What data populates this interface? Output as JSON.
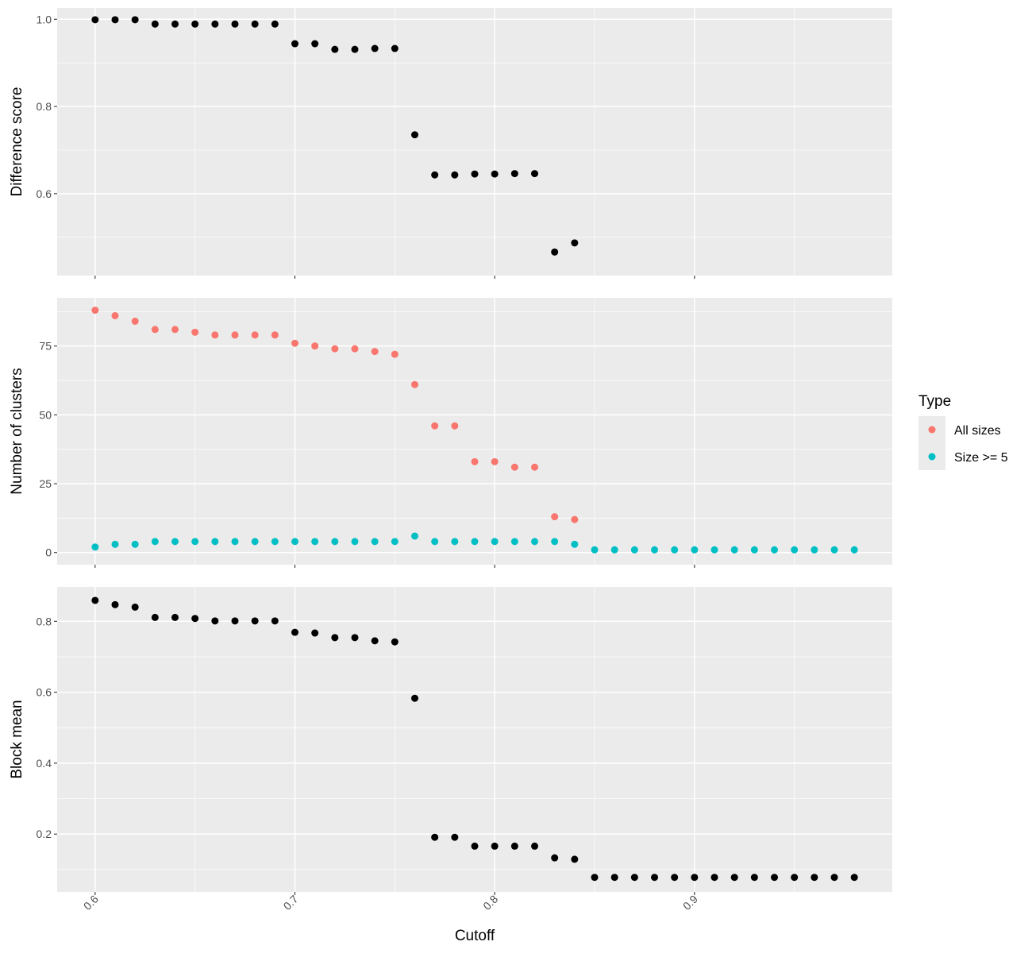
{
  "chart_data": {
    "type": "scatter",
    "xlabel": "Cutoff",
    "x_ticks": [
      "0.6",
      "0.7",
      "0.8",
      "0.9"
    ],
    "x_tick_values": [
      0.6,
      0.7,
      0.8,
      0.9
    ],
    "xlim": [
      0.581,
      0.999
    ],
    "grid": true,
    "legend": {
      "position": "right",
      "title": "Type",
      "entries": [
        {
          "label": "All sizes",
          "color": "#F8766D"
        },
        {
          "label": "Size >= 5",
          "color": "#00BFC4"
        }
      ]
    },
    "panels": [
      {
        "ylabel": "Difference score",
        "ylim": [
          0.412,
          1.026
        ],
        "y_ticks": [
          "0.6",
          "0.8",
          "1.0"
        ],
        "y_tick_values": [
          0.6,
          0.8,
          1.0
        ],
        "y_minor": [
          0.5,
          0.7,
          0.9
        ],
        "series": [
          {
            "color": "#000000",
            "x": [
              0.6,
              0.61,
              0.62,
              0.63,
              0.64,
              0.65,
              0.66,
              0.67,
              0.68,
              0.69,
              0.7,
              0.71,
              0.72,
              0.73,
              0.74,
              0.75,
              0.76,
              0.77,
              0.78,
              0.79,
              0.8,
              0.81,
              0.82,
              0.83,
              0.84
            ],
            "y": [
              0.999,
              0.999,
              0.999,
              0.989,
              0.989,
              0.989,
              0.989,
              0.989,
              0.989,
              0.989,
              0.944,
              0.944,
              0.931,
              0.931,
              0.933,
              0.933,
              0.735,
              0.643,
              0.643,
              0.645,
              0.645,
              0.646,
              0.646,
              0.466,
              0.487
            ]
          }
        ]
      },
      {
        "ylabel": "Number of clusters",
        "ylim": [
          -4.4,
          92.5
        ],
        "y_ticks": [
          "0",
          "25",
          "50",
          "75"
        ],
        "y_tick_values": [
          0,
          25,
          50,
          75
        ],
        "y_minor": [
          12.5,
          37.5,
          62.5,
          87.5
        ],
        "series": [
          {
            "name": "All sizes",
            "color": "#F8766D",
            "x": [
              0.6,
              0.61,
              0.62,
              0.63,
              0.64,
              0.65,
              0.66,
              0.67,
              0.68,
              0.69,
              0.7,
              0.71,
              0.72,
              0.73,
              0.74,
              0.75,
              0.76,
              0.77,
              0.78,
              0.79,
              0.8,
              0.81,
              0.82,
              0.83,
              0.84
            ],
            "y": [
              88,
              86,
              84,
              81,
              81,
              80,
              79,
              79,
              79,
              79,
              76,
              75,
              74,
              74,
              73,
              72,
              61,
              46,
              46,
              33,
              33,
              31,
              31,
              13,
              12
            ]
          },
          {
            "name": "Size >= 5",
            "color": "#00BFC4",
            "x": [
              0.6,
              0.61,
              0.62,
              0.63,
              0.64,
              0.65,
              0.66,
              0.67,
              0.68,
              0.69,
              0.7,
              0.71,
              0.72,
              0.73,
              0.74,
              0.75,
              0.76,
              0.77,
              0.78,
              0.79,
              0.8,
              0.81,
              0.82,
              0.83,
              0.84,
              0.85,
              0.86,
              0.87,
              0.88,
              0.89,
              0.9,
              0.91,
              0.92,
              0.93,
              0.94,
              0.95,
              0.96,
              0.97,
              0.98
            ],
            "y": [
              2,
              3,
              3,
              4,
              4,
              4,
              4,
              4,
              4,
              4,
              4,
              4,
              4,
              4,
              4,
              4,
              6,
              4,
              4,
              4,
              4,
              4,
              4,
              4,
              3,
              1,
              1,
              1,
              1,
              1,
              1,
              1,
              1,
              1,
              1,
              1,
              1,
              1,
              1
            ]
          }
        ]
      },
      {
        "ylabel": "Block mean",
        "ylim": [
          0.037,
          0.897
        ],
        "y_ticks": [
          "0.2",
          "0.4",
          "0.6",
          "0.8"
        ],
        "y_tick_values": [
          0.2,
          0.4,
          0.6,
          0.8
        ],
        "y_minor": [
          0.1,
          0.3,
          0.5,
          0.7
        ],
        "series": [
          {
            "color": "#000000",
            "x": [
              0.6,
              0.61,
              0.62,
              0.63,
              0.64,
              0.65,
              0.66,
              0.67,
              0.68,
              0.69,
              0.7,
              0.71,
              0.72,
              0.73,
              0.74,
              0.75,
              0.76,
              0.77,
              0.78,
              0.79,
              0.8,
              0.81,
              0.82,
              0.83,
              0.84,
              0.85,
              0.86,
              0.87,
              0.88,
              0.89,
              0.9,
              0.91,
              0.92,
              0.93,
              0.94,
              0.95,
              0.96,
              0.97,
              0.98
            ],
            "y": [
              0.859,
              0.847,
              0.84,
              0.811,
              0.811,
              0.808,
              0.801,
              0.801,
              0.801,
              0.801,
              0.769,
              0.767,
              0.754,
              0.754,
              0.745,
              0.742,
              0.583,
              0.191,
              0.191,
              0.166,
              0.166,
              0.166,
              0.166,
              0.133,
              0.129,
              0.078,
              0.078,
              0.078,
              0.078,
              0.078,
              0.078,
              0.078,
              0.078,
              0.078,
              0.078,
              0.078,
              0.078,
              0.078,
              0.078
            ]
          }
        ]
      }
    ]
  }
}
